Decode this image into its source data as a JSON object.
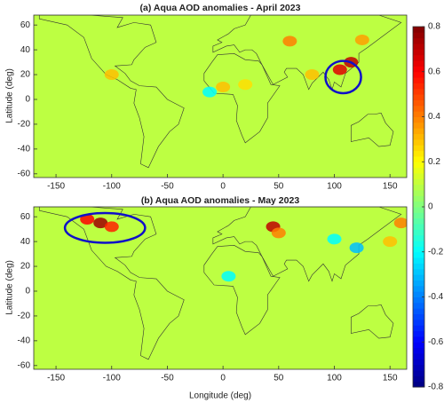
{
  "chart_data": [
    {
      "type": "map",
      "title": "(a) Aqua AOD anomalies - April 2023",
      "ylabel": "Latitude (deg)",
      "xlim": [
        -170,
        165
      ],
      "ylim": [
        -63,
        68
      ],
      "xticks": [
        -150,
        -100,
        -50,
        0,
        50,
        100,
        150
      ],
      "yticks": [
        -60,
        -40,
        -20,
        0,
        20,
        40,
        60
      ],
      "hotspots": {
        "x": [
          105,
          115,
          -100,
          0,
          -12,
          80,
          60,
          125,
          20
        ],
        "y": [
          24,
          30,
          20,
          10,
          6,
          20,
          47,
          48,
          12
        ],
        "values": [
          0.65,
          0.7,
          0.3,
          0.3,
          -0.2,
          0.3,
          0.4,
          0.35,
          0.25
        ]
      },
      "ellipse": {
        "x": 108,
        "y": 18,
        "rx": 16,
        "ry": 13,
        "color": "#1010c8"
      }
    },
    {
      "type": "map",
      "title": "(b) Aqua AOD anomalies - May 2023",
      "ylabel": "Latitude (deg)",
      "xlabel": "Longitude (deg)",
      "xlim": [
        -170,
        165
      ],
      "ylim": [
        -63,
        68
      ],
      "xticks": [
        -150,
        -100,
        -50,
        0,
        50,
        100,
        150
      ],
      "yticks": [
        -60,
        -40,
        -20,
        0,
        20,
        40,
        60
      ],
      "hotspots": {
        "x": [
          -110,
          -100,
          -122,
          45,
          50,
          120,
          150,
          5,
          160,
          100
        ],
        "y": [
          55,
          52,
          58,
          52,
          47,
          35,
          40,
          12,
          55,
          42
        ],
        "values": [
          0.75,
          0.55,
          0.6,
          0.7,
          0.4,
          -0.3,
          0.3,
          -0.2,
          0.4,
          -0.2
        ]
      },
      "ellipse": {
        "x": -106,
        "y": 51,
        "rx": 36,
        "ry": 12,
        "color": "#1010c8"
      }
    },
    {
      "type": "colorbar",
      "ylim": [
        -0.8,
        0.8
      ],
      "yticks": [
        -0.8,
        -0.6,
        -0.4,
        -0.2,
        0,
        0.2,
        0.4,
        0.6,
        0.8
      ]
    }
  ]
}
